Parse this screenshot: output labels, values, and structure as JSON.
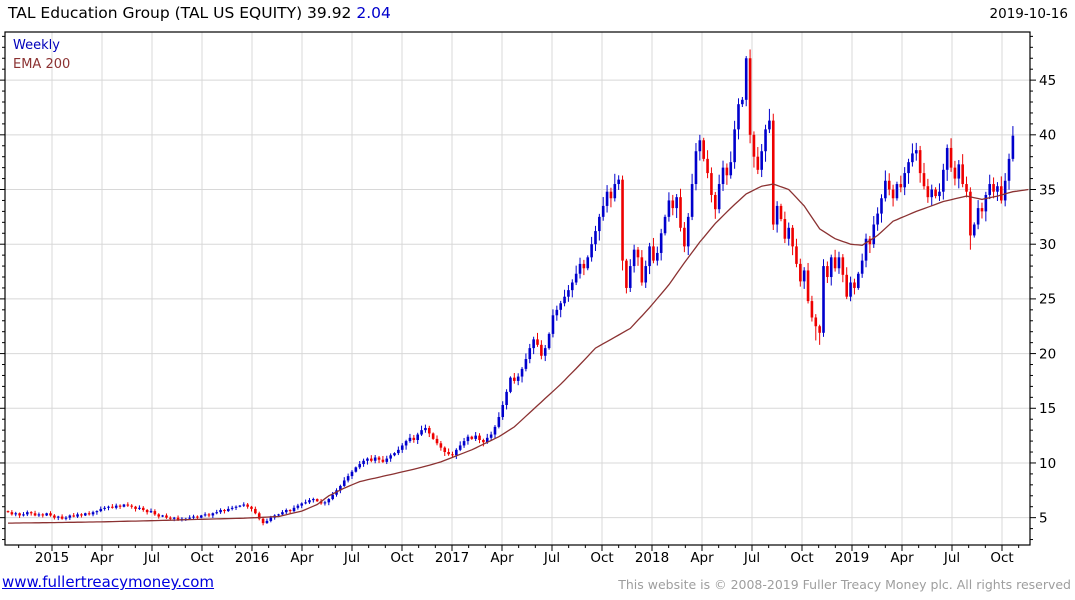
{
  "header": {
    "title_main": "TAL Education Group (TAL US EQUITY) 39.92",
    "title_change": "2.04",
    "date": "2019-10-16"
  },
  "legend": {
    "interval": "Weekly",
    "overlay": "EMA 200"
  },
  "footer": {
    "link": "www.fullertreacymoney.com",
    "copyright": "This website is © 2008-2019 Fuller Treacy Money plc. All rights reserved"
  },
  "chart_data": {
    "type": "candlestick",
    "title": "TAL Education Group (TAL US EQUITY)",
    "last_price": 39.92,
    "change": 2.04,
    "interval": "Weekly",
    "overlay": "EMA 200",
    "x_tick_labels": [
      "2015",
      "Apr",
      "Jul",
      "Oct",
      "2016",
      "Apr",
      "Jul",
      "Oct",
      "2017",
      "Apr",
      "Jul",
      "Oct",
      "2018",
      "Apr",
      "Jul",
      "Oct",
      "2019",
      "Apr",
      "Jul",
      "Oct"
    ],
    "y_ticks": [
      5,
      10,
      15,
      20,
      25,
      30,
      35,
      40,
      45
    ],
    "y_range": [
      2.5,
      49.4
    ],
    "grid": true,
    "legend_position": "top-left",
    "weekly_closes": [
      5.5,
      5.3,
      5.4,
      5.2,
      5.3,
      5.5,
      5.4,
      5.2,
      5.3,
      5.2,
      5.4,
      5.2,
      5.0,
      5.1,
      4.9,
      5.0,
      5.2,
      5.1,
      5.3,
      5.2,
      5.4,
      5.3,
      5.5,
      5.6,
      5.8,
      5.9,
      6.0,
      5.9,
      6.1,
      6.0,
      6.2,
      6.1,
      6.0,
      5.8,
      5.9,
      5.7,
      5.5,
      5.6,
      5.3,
      5.1,
      5.2,
      5.0,
      4.9,
      5.0,
      4.8,
      4.9,
      4.9,
      5.0,
      5.1,
      5.0,
      5.2,
      5.3,
      5.2,
      5.4,
      5.5,
      5.7,
      5.6,
      5.8,
      5.9,
      6.0,
      6.1,
      6.2,
      6.0,
      5.8,
      5.4,
      4.9,
      4.5,
      4.7,
      5.0,
      5.2,
      5.3,
      5.5,
      5.7,
      5.6,
      5.9,
      6.1,
      6.3,
      6.4,
      6.6,
      6.7,
      6.5,
      6.3,
      6.4,
      6.7,
      7.1,
      7.5,
      7.9,
      8.4,
      8.8,
      9.2,
      9.6,
      9.9,
      10.2,
      10.4,
      10.2,
      10.5,
      10.3,
      10.1,
      10.4,
      10.7,
      10.9,
      11.2,
      11.6,
      12.0,
      12.3,
      12.1,
      12.6,
      13.0,
      13.2,
      12.7,
      12.2,
      11.8,
      11.4,
      11.0,
      10.8,
      10.7,
      11.2,
      11.6,
      12.0,
      12.4,
      12.2,
      12.5,
      12.1,
      11.9,
      12.3,
      12.6,
      13.3,
      14.2,
      15.3,
      16.5,
      17.8,
      17.5,
      17.9,
      18.6,
      19.5,
      20.5,
      21.3,
      20.8,
      19.8,
      20.5,
      21.8,
      23.5,
      24.0,
      24.6,
      25.2,
      25.8,
      26.5,
      27.3,
      28.2,
      27.8,
      28.8,
      30.0,
      31.2,
      32.5,
      33.5,
      34.8,
      34.2,
      35.5,
      35.9,
      28.5,
      26.0,
      28.0,
      29.5,
      28.8,
      26.5,
      28.0,
      29.8,
      28.5,
      29.2,
      31.0,
      32.5,
      34.0,
      33.3,
      34.3,
      31.5,
      29.8,
      32.5,
      35.5,
      38.5,
      39.5,
      37.8,
      36.5,
      34.5,
      33.2,
      35.5,
      37.0,
      36.3,
      37.5,
      40.5,
      42.8,
      43.2,
      47.0,
      40.0,
      38.0,
      36.8,
      38.5,
      40.5,
      41.3,
      31.8,
      33.5,
      32.3,
      30.5,
      31.5,
      29.8,
      28.2,
      26.6,
      27.6,
      24.8,
      23.3,
      22.5,
      21.9,
      28.0,
      27.0,
      28.8,
      27.8,
      28.8,
      27.2,
      25.2,
      26.5,
      26.0,
      27.3,
      28.5,
      30.5,
      30.0,
      31.8,
      32.8,
      34.2,
      35.8,
      35.0,
      34.2,
      35.5,
      35.2,
      36.5,
      37.5,
      38.3,
      38.6,
      36.5,
      35.3,
      34.3,
      35.0,
      34.4,
      34.8,
      36.8,
      38.8,
      37.0,
      36.0,
      37.3,
      35.5,
      34.8,
      30.8,
      31.8,
      33.3,
      33.0,
      34.5,
      35.5,
      34.8,
      35.3,
      34.0,
      35.8,
      37.8,
      39.92
    ],
    "extremes": {
      "44": {
        "low": 4.7
      },
      "66": {
        "low": 4.3
      },
      "158": {
        "high": 36.3
      },
      "159": {
        "low": 27.6
      },
      "160": {
        "low": 25.5
      },
      "191": {
        "high": 47.2
      },
      "192": {
        "high": 47.8
      },
      "198": {
        "low": 31.3
      },
      "209": {
        "low": 21.2
      },
      "210": {
        "low": 20.8
      },
      "249": {
        "low": 29.5
      },
      "260": {
        "high": 40.8
      }
    },
    "ema_anchors": [
      [
        0,
        4.5
      ],
      [
        12,
        4.55
      ],
      [
        25,
        4.62
      ],
      [
        40,
        4.75
      ],
      [
        50,
        4.85
      ],
      [
        61,
        4.95
      ],
      [
        70,
        5.1
      ],
      [
        76,
        5.6
      ],
      [
        80,
        6.2
      ],
      [
        83,
        7.0
      ],
      [
        87,
        7.7
      ],
      [
        91,
        8.3
      ],
      [
        96,
        8.7
      ],
      [
        101,
        9.1
      ],
      [
        107,
        9.6
      ],
      [
        112,
        10.1
      ],
      [
        120,
        11.2
      ],
      [
        127,
        12.4
      ],
      [
        131,
        13.3
      ],
      [
        135,
        14.6
      ],
      [
        139,
        15.9
      ],
      [
        143,
        17.2
      ],
      [
        148,
        19.0
      ],
      [
        152,
        20.5
      ],
      [
        156,
        21.3
      ],
      [
        161,
        22.3
      ],
      [
        166,
        24.2
      ],
      [
        171,
        26.3
      ],
      [
        175,
        28.3
      ],
      [
        179,
        30.2
      ],
      [
        183,
        31.9
      ],
      [
        187,
        33.3
      ],
      [
        191,
        34.6
      ],
      [
        195,
        35.3
      ],
      [
        198,
        35.5
      ],
      [
        202,
        35.0
      ],
      [
        206,
        33.5
      ],
      [
        210,
        31.4
      ],
      [
        214,
        30.5
      ],
      [
        218,
        30.0
      ],
      [
        221,
        29.9
      ],
      [
        225,
        30.8
      ],
      [
        229,
        32.1
      ],
      [
        235,
        33.0
      ],
      [
        242,
        33.9
      ],
      [
        248,
        34.4
      ],
      [
        252,
        34.1
      ],
      [
        256,
        34.4
      ],
      [
        260,
        34.8
      ],
      [
        264,
        35.0
      ]
    ],
    "colors": {
      "up": "#0000cc",
      "down": "#ee0000",
      "ema": "#8b3232",
      "grid": "#d8d8d8",
      "axis": "#000000",
      "interval_label": "#0000bb",
      "change_text": "#0000cc",
      "link": "#0000dd",
      "copyright": "#9e9e9e"
    }
  }
}
